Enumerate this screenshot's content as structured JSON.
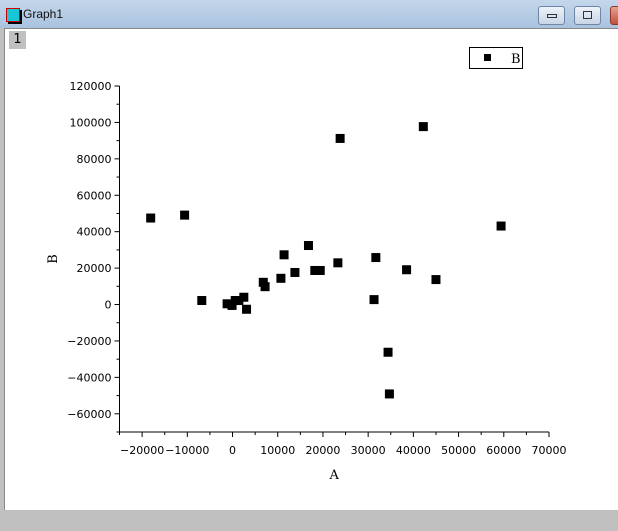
{
  "window": {
    "title": "Graph1",
    "layer_label": "1",
    "icon": "origin-graph-icon"
  },
  "chart_data": {
    "type": "scatter",
    "xlabel": "A",
    "ylabel": "B",
    "xlim": [
      -25000,
      70000
    ],
    "ylim": [
      -70000,
      120000
    ],
    "xticks": [
      -20000,
      -10000,
      0,
      10000,
      20000,
      30000,
      40000,
      50000,
      60000,
      70000
    ],
    "yticks": [
      -60000,
      -40000,
      -20000,
      0,
      20000,
      40000,
      60000,
      80000,
      100000,
      120000
    ],
    "grid": false,
    "legend_placement": "top-right",
    "series": [
      {
        "name": "B",
        "marker": "square",
        "color": "#000000",
        "points": [
          [
            -18100,
            47500
          ],
          [
            -10600,
            49100
          ],
          [
            -6800,
            2200
          ],
          [
            -1200,
            400
          ],
          [
            -100,
            -500
          ],
          [
            600,
            2200
          ],
          [
            1400,
            2200
          ],
          [
            2500,
            4000
          ],
          [
            3100,
            -2600
          ],
          [
            6800,
            12200
          ],
          [
            7200,
            9800
          ],
          [
            10700,
            14400
          ],
          [
            11400,
            27300
          ],
          [
            13800,
            17600
          ],
          [
            16800,
            32400
          ],
          [
            18200,
            18700
          ],
          [
            19400,
            18700
          ],
          [
            23300,
            22900
          ],
          [
            23800,
            91200
          ],
          [
            31300,
            2700
          ],
          [
            31700,
            25800
          ],
          [
            34400,
            -26200
          ],
          [
            34700,
            -49100
          ],
          [
            38500,
            19100
          ],
          [
            42200,
            97700
          ],
          [
            45000,
            13700
          ],
          [
            59400,
            43100
          ]
        ]
      }
    ]
  }
}
